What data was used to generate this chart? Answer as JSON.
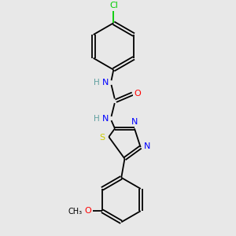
{
  "background_color": "#e8e8e8",
  "atom_colors": {
    "N": "#0000ff",
    "O": "#ff0000",
    "S": "#cccc00",
    "Cl": "#00cc00",
    "C": "#000000",
    "H": "#5f9f9f"
  },
  "figsize": [
    3.0,
    3.0
  ],
  "dpi": 100
}
